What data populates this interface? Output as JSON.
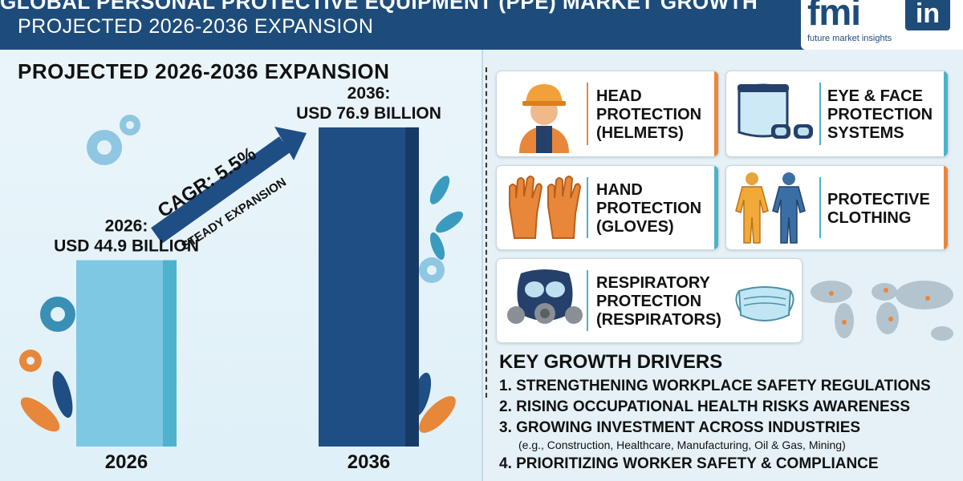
{
  "header": {
    "title": "GLOBAL PERSONAL PROTECTIVE EQUIPMENT (PPE) MARKET GROWTH",
    "subtitle": "PROJECTED 2026-2036 EXPANSION",
    "logo_text": "fmi",
    "logo_badge": "in",
    "logo_tagline": "future market insights"
  },
  "chart_data": {
    "type": "bar",
    "title": "PROJECTED 2026-2036 EXPANSION",
    "categories": [
      "2026",
      "2036"
    ],
    "values": [
      44.9,
      76.9
    ],
    "unit": "USD Billion",
    "data_labels": [
      {
        "year": "2026:",
        "value": "USD 44.9 BILLION"
      },
      {
        "year": "2036:",
        "value": "USD 76.9 BILLION"
      }
    ],
    "annotation": {
      "cagr": "CAGR: 5.5%",
      "note": "STEADY EXPANSION"
    },
    "ylim": [
      0,
      85
    ],
    "colors": [
      "#7ec8e3",
      "#1f4e85"
    ]
  },
  "segments": [
    {
      "lines": [
        "HEAD",
        "PROTECTION",
        "(HELMETS)"
      ],
      "icon": "helmet-worker-icon",
      "accent": "#e8873a"
    },
    {
      "lines": [
        "EYE & FACE",
        "PROTECTION",
        "SYSTEMS"
      ],
      "icon": "goggles-faceshield-icon",
      "accent": "#4bb3c8"
    },
    {
      "lines": [
        "HAND",
        "PROTECTION",
        "(GLOVES)"
      ],
      "icon": "gloves-icon",
      "accent": "#4bb3c8"
    },
    {
      "lines": [
        "PROTECTIVE",
        "CLOTHING"
      ],
      "icon": "coverall-icon",
      "accent": "#e8873a"
    },
    {
      "lines": [
        "RESPIRATORY",
        "PROTECTION",
        "(RESPIRATORS)"
      ],
      "icon": "respirator-icon",
      "accent": "#4bb3c8"
    }
  ],
  "drivers": {
    "title": "KEY GROWTH DRIVERS",
    "items": [
      "1. STRENGTHENING WORKPLACE SAFETY REGULATIONS",
      "2. RISING OCCUPATIONAL HEALTH RISKS AWARENESS",
      "3. GROWING INVESTMENT ACROSS INDUSTRIES",
      "4. PRIORITIZING WORKER SAFETY & COMPLIANCE"
    ],
    "note": "(e.g., Construction, Healthcare, Manufacturing, Oil & Gas, Mining)"
  }
}
